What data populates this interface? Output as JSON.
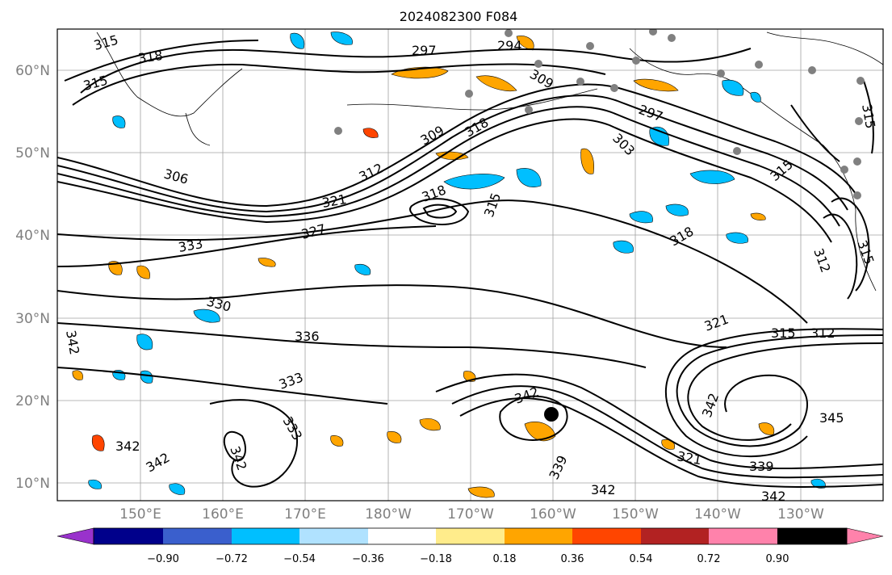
{
  "title": "2024082300 F084",
  "lat_ticks": [
    "60°N",
    "50°N",
    "40°N",
    "30°N",
    "20°N",
    "10°N"
  ],
  "lon_ticks": [
    "150°E",
    "160°E",
    "170°E",
    "180°W",
    "170°W",
    "160°W",
    "150°W",
    "140°W",
    "130°W"
  ],
  "contour_labels": [
    "315",
    "318",
    "315",
    "297",
    "294",
    "309",
    "297",
    "303",
    "306",
    "309",
    "318",
    "312",
    "321",
    "318",
    "315",
    "315",
    "333",
    "327",
    "330",
    "336",
    "342",
    "342",
    "342",
    "333",
    "333",
    "342",
    "339",
    "342",
    "321",
    "315",
    "312",
    "342",
    "345",
    "321",
    "339",
    "342",
    "342",
    "318",
    "312",
    "315",
    "315"
  ],
  "colorbar": {
    "tick_labels": [
      "−0.90",
      "−0.72",
      "−0.54",
      "−0.36",
      "−0.18",
      "0.18",
      "0.36",
      "0.54",
      "0.72",
      "0.90"
    ],
    "colors": [
      "#9932cc",
      "#00008b",
      "#3a5fcd",
      "#00bfff",
      "#b0e2ff",
      "#ffffff",
      "#ffec8b",
      "#ffa500",
      "#ff4500",
      "#b22222",
      "#ff82ab"
    ]
  }
}
